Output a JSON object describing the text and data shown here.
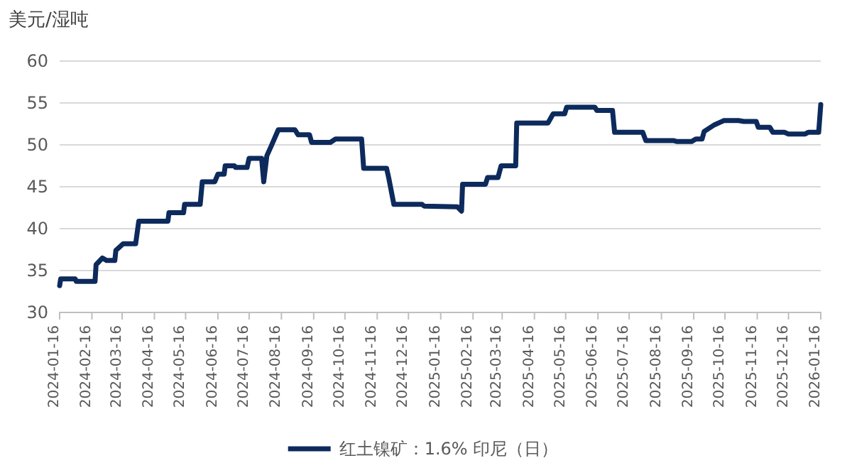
{
  "chart_data": {
    "type": "line",
    "ylabel": "美元/湿吨",
    "x": [
      "2024-01-16",
      "2024-01-17",
      "2024-01-31",
      "2024-02-01",
      "2024-02-19",
      "2024-02-20",
      "2024-02-26",
      "2024-03-01",
      "2024-03-09",
      "2024-03-10",
      "2024-03-17",
      "2024-03-29",
      "2024-04-01",
      "2024-04-29",
      "2024-04-30",
      "2024-05-14",
      "2024-05-15",
      "2024-05-30",
      "2024-06-01",
      "2024-06-13",
      "2024-06-16",
      "2024-06-22",
      "2024-06-23",
      "2024-07-02",
      "2024-07-03",
      "2024-07-14",
      "2024-07-16",
      "2024-07-28",
      "2024-07-30",
      "2024-08-02",
      "2024-08-06",
      "2024-08-13",
      "2024-08-29",
      "2024-09-01",
      "2024-09-12",
      "2024-09-14",
      "2024-10-02",
      "2024-10-07",
      "2024-11-01",
      "2024-11-03",
      "2024-11-25",
      "2024-11-27",
      "2024-12-02",
      "2024-12-29",
      "2024-12-31",
      "2025-02-01",
      "2025-02-05",
      "2025-02-06",
      "2025-02-28",
      "2025-03-02",
      "2025-03-12",
      "2025-03-15",
      "2025-03-29",
      "2025-03-30",
      "2025-04-29",
      "2025-05-04",
      "2025-05-15",
      "2025-05-17",
      "2025-06-13",
      "2025-06-15",
      "2025-06-30",
      "2025-07-02",
      "2025-07-29",
      "2025-08-01",
      "2025-08-28",
      "2025-08-31",
      "2025-09-14",
      "2025-09-18",
      "2025-09-24",
      "2025-09-26",
      "2025-10-06",
      "2025-10-15",
      "2025-10-29",
      "2025-11-03",
      "2025-11-15",
      "2025-11-17",
      "2025-11-28",
      "2025-12-01",
      "2025-12-12",
      "2025-12-16",
      "2026-01-01",
      "2026-01-04",
      "2026-01-14",
      "2026-01-16"
    ],
    "series": [
      {
        "name": "红土镍矿：1.6% 印尼（日）",
        "color": "#0d2a5c",
        "values": [
          33.2,
          34.0,
          34.0,
          33.7,
          33.7,
          35.7,
          36.5,
          36.2,
          36.2,
          37.4,
          38.2,
          38.2,
          40.9,
          40.9,
          41.9,
          41.9,
          42.9,
          42.9,
          45.6,
          45.6,
          46.5,
          46.5,
          47.5,
          47.5,
          47.3,
          47.3,
          48.4,
          48.4,
          45.6,
          48.7,
          49.8,
          51.8,
          51.8,
          51.2,
          51.2,
          50.3,
          50.3,
          50.7,
          50.7,
          47.2,
          47.2,
          46.1,
          42.9,
          42.9,
          42.7,
          42.6,
          42.1,
          45.3,
          45.3,
          46.1,
          46.1,
          47.5,
          47.5,
          52.6,
          52.6,
          53.7,
          53.7,
          54.5,
          54.5,
          54.1,
          54.1,
          51.5,
          51.5,
          50.5,
          50.5,
          50.4,
          50.4,
          50.7,
          50.7,
          51.6,
          52.4,
          52.9,
          52.9,
          52.8,
          52.8,
          52.1,
          52.1,
          51.5,
          51.5,
          51.3,
          51.3,
          51.5,
          51.5,
          54.8
        ]
      }
    ],
    "xlim": [
      "2024-01-16",
      "2026-01-16"
    ],
    "xticks": [
      "2024-01-16",
      "2024-02-16",
      "2024-03-16",
      "2024-04-16",
      "2024-05-16",
      "2024-06-16",
      "2024-07-16",
      "2024-08-16",
      "2024-09-16",
      "2024-10-16",
      "2024-11-16",
      "2024-12-16",
      "2025-01-16",
      "2025-02-16",
      "2025-03-16",
      "2025-04-16",
      "2025-05-16",
      "2025-06-16",
      "2025-07-16",
      "2025-08-16",
      "2025-09-16",
      "2025-10-16",
      "2025-11-16",
      "2025-12-16",
      "2026-01-16"
    ],
    "ylim": [
      30,
      60
    ],
    "yticks": [
      30,
      35,
      40,
      45,
      50,
      55,
      60
    ],
    "grid": "y",
    "legend": "bottom",
    "marker": "none",
    "line_style": "solid"
  }
}
